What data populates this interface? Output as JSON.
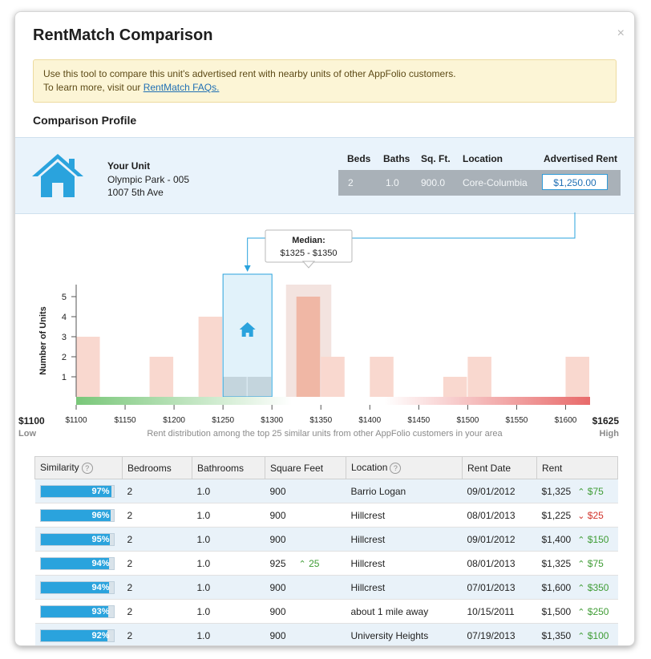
{
  "dialog": {
    "title": "RentMatch Comparison",
    "close_label": "×"
  },
  "notice": {
    "line1": "Use this tool to compare this unit's advertised rent with nearby units of other AppFolio customers.",
    "line2_prefix": "To learn more, visit our ",
    "link": "RentMatch FAQs."
  },
  "profile": {
    "section_title": "Comparison Profile",
    "unit_label": "Your Unit",
    "unit_name": "Olympic Park - 005",
    "unit_address": "1007 5th Ave",
    "headers": {
      "beds": "Beds",
      "baths": "Baths",
      "sqft": "Sq. Ft.",
      "location": "Location",
      "rent": "Advertised Rent"
    },
    "values": {
      "beds": "2",
      "baths": "1.0",
      "sqft": "900.0",
      "location": "Core-Columbia",
      "rent": "$1,250.00"
    }
  },
  "chart_data": {
    "type": "bar",
    "ylabel": "Number of Units",
    "yticks": [
      "1",
      "2",
      "3",
      "4",
      "5"
    ],
    "ylim": [
      0,
      5
    ],
    "x_ticks": [
      "$1100",
      "$1150",
      "$1200",
      "$1250",
      "$1300",
      "$1350",
      "$1400",
      "$1450",
      "$1500",
      "$1550",
      "$1600"
    ],
    "x_min_label": "$1100",
    "x_min_sub": "Low",
    "x_max_label": "$1625",
    "x_max_sub": "High",
    "bin_width": 25,
    "bins": [
      {
        "x": 1100,
        "count": 3
      },
      {
        "x": 1175,
        "count": 2
      },
      {
        "x": 1225,
        "count": 4
      },
      {
        "x": 1250,
        "count": 1
      },
      {
        "x": 1275,
        "count": 1
      },
      {
        "x": 1325,
        "count": 5
      },
      {
        "x": 1350,
        "count": 2
      },
      {
        "x": 1400,
        "count": 2
      },
      {
        "x": 1475,
        "count": 1
      },
      {
        "x": 1500,
        "count": 2
      },
      {
        "x": 1600,
        "count": 2
      }
    ],
    "your_unit_bin": [
      1250,
      1300
    ],
    "median_bin": [
      1325,
      1350
    ],
    "median_label": "Median:",
    "median_range": "$1325 - $1350",
    "caption": "Rent distribution among the top 25 similar units from other AppFolio customers in your area"
  },
  "table": {
    "headers": [
      "Similarity",
      "Bedrooms",
      "Bathrooms",
      "Square Feet",
      "Location",
      "Rent Date",
      "Rent"
    ],
    "help_mark": "?",
    "rows": [
      {
        "similarity": "97%",
        "pct": 97,
        "bedrooms": "2",
        "bathrooms": "1.0",
        "sqft": "900",
        "sqft_delta": "",
        "location": "Barrio Logan",
        "date": "09/01/2012",
        "rent": "$1,325",
        "dir": "up",
        "delta": "$75"
      },
      {
        "similarity": "96%",
        "pct": 96,
        "bedrooms": "2",
        "bathrooms": "1.0",
        "sqft": "900",
        "sqft_delta": "",
        "location": "Hillcrest",
        "date": "08/01/2013",
        "rent": "$1,225",
        "dir": "down",
        "delta": "$25"
      },
      {
        "similarity": "95%",
        "pct": 95,
        "bedrooms": "2",
        "bathrooms": "1.0",
        "sqft": "900",
        "sqft_delta": "",
        "location": "Hillcrest",
        "date": "09/01/2012",
        "rent": "$1,400",
        "dir": "up",
        "delta": "$150"
      },
      {
        "similarity": "94%",
        "pct": 94,
        "bedrooms": "2",
        "bathrooms": "1.0",
        "sqft": "925",
        "sqft_delta": "25",
        "location": "Hillcrest",
        "date": "08/01/2013",
        "rent": "$1,325",
        "dir": "up",
        "delta": "$75"
      },
      {
        "similarity": "94%",
        "pct": 94,
        "bedrooms": "2",
        "bathrooms": "1.0",
        "sqft": "900",
        "sqft_delta": "",
        "location": "Hillcrest",
        "date": "07/01/2013",
        "rent": "$1,600",
        "dir": "up",
        "delta": "$350"
      },
      {
        "similarity": "93%",
        "pct": 93,
        "bedrooms": "2",
        "bathrooms": "1.0",
        "sqft": "900",
        "sqft_delta": "",
        "location": "about 1 mile away",
        "date": "10/15/2011",
        "rent": "$1,500",
        "dir": "up",
        "delta": "$250"
      },
      {
        "similarity": "92%",
        "pct": 92,
        "bedrooms": "2",
        "bathrooms": "1.0",
        "sqft": "900",
        "sqft_delta": "",
        "location": "University Heights",
        "date": "07/19/2013",
        "rent": "$1,350",
        "dir": "up",
        "delta": "$100"
      }
    ]
  },
  "colors": {
    "accent": "#2aa3dd",
    "up": "#3f9c35",
    "down": "#d2332b",
    "bar": "#f9d8cf",
    "bar_grey": "#dedede"
  },
  "icons": {
    "unit": "house-icon",
    "close": "close-icon",
    "help": "question-icon",
    "up": "chevron-up-icon",
    "down": "chevron-down-icon"
  }
}
